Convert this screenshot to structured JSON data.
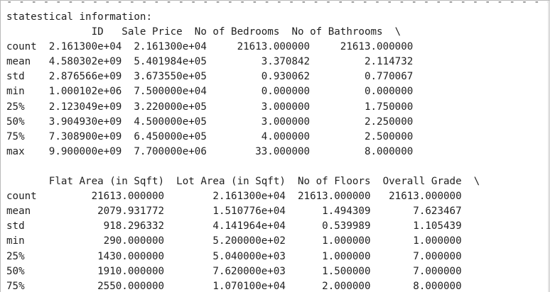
{
  "dash_line": "- - - - - - - - - - - - - - - - - - - - - - - - - - - - - - - - - - - - - - - - - - - - - - - - - - - - - - - - - - - - - - - -",
  "title": "statestical information:",
  "table1": {
    "header": "              ID   Sale Price  No of Bedrooms  No of Bathrooms  \\",
    "rows": [
      "count  2.161300e+04  2.161300e+04     21613.000000     21613.000000",
      "mean   4.580302e+09  5.401984e+05         3.370842         2.114732",
      "std    2.876566e+09  3.673550e+05         0.930062         0.770067",
      "min    1.000102e+06  7.500000e+04         0.000000         0.000000",
      "25%    2.123049e+09  3.220000e+05         3.000000         1.750000",
      "50%    3.904930e+09  4.500000e+05         3.000000         2.250000",
      "75%    7.308900e+09  6.450000e+05         4.000000         2.500000",
      "max    9.900000e+09  7.700000e+06        33.000000         8.000000"
    ]
  },
  "table2": {
    "header": "       Flat Area (in Sqft)  Lot Area (in Sqft)  No of Floors  Overall Grade  \\",
    "rows": [
      "count         21613.000000        2.161300e+04  21613.000000   21613.000000",
      "mean           2079.931772        1.510776e+04      1.494309       7.623467",
      "std             918.296332        4.141964e+04      0.539989       1.105439",
      "min             290.000000        5.200000e+02      1.000000       1.000000",
      "25%            1430.000000        5.040000e+03      1.000000       7.000000",
      "50%            1910.000000        7.620000e+03      1.500000       7.000000",
      "75%            2550.000000        1.070100e+04      2.000000       8.000000"
    ]
  }
}
